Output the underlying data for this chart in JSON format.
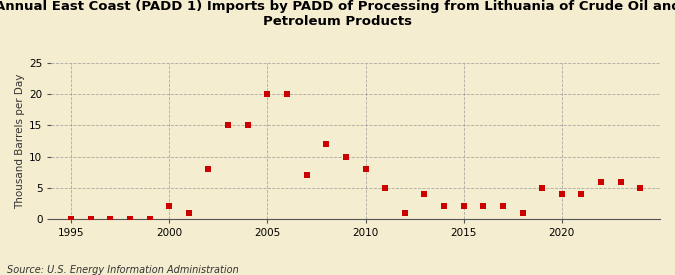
{
  "title_line1": "Annual East Coast (PADD 1) Imports by PADD of Processing from Lithuania of Crude Oil and",
  "title_line2": "Petroleum Products",
  "ylabel": "Thousand Barrels per Day",
  "source": "Source: U.S. Energy Information Administration",
  "xlim": [
    1994,
    2025
  ],
  "ylim": [
    0,
    25
  ],
  "yticks": [
    0,
    5,
    10,
    15,
    20,
    25
  ],
  "xticks": [
    1995,
    2000,
    2005,
    2010,
    2015,
    2020
  ],
  "background_color": "#f5edcf",
  "data": [
    [
      1995,
      0
    ],
    [
      1996,
      0
    ],
    [
      1997,
      0
    ],
    [
      1998,
      0
    ],
    [
      1999,
      0
    ],
    [
      2000,
      2
    ],
    [
      2001,
      1
    ],
    [
      2002,
      8
    ],
    [
      2003,
      15
    ],
    [
      2004,
      15
    ],
    [
      2005,
      20
    ],
    [
      2006,
      20
    ],
    [
      2007,
      7
    ],
    [
      2008,
      12
    ],
    [
      2009,
      10
    ],
    [
      2010,
      8
    ],
    [
      2011,
      5
    ],
    [
      2012,
      1
    ],
    [
      2013,
      4
    ],
    [
      2014,
      2
    ],
    [
      2015,
      2
    ],
    [
      2016,
      2
    ],
    [
      2017,
      2
    ],
    [
      2018,
      1
    ],
    [
      2019,
      5
    ],
    [
      2020,
      4
    ],
    [
      2021,
      4
    ],
    [
      2022,
      6
    ],
    [
      2023,
      6
    ],
    [
      2024,
      5
    ]
  ],
  "marker_color": "#cc0000",
  "marker": "s",
  "marker_size": 4,
  "grid_color": "#999999",
  "grid_linestyle": "--",
  "title_fontsize": 9.5,
  "ylabel_fontsize": 7.5,
  "tick_fontsize": 7.5,
  "source_fontsize": 7
}
